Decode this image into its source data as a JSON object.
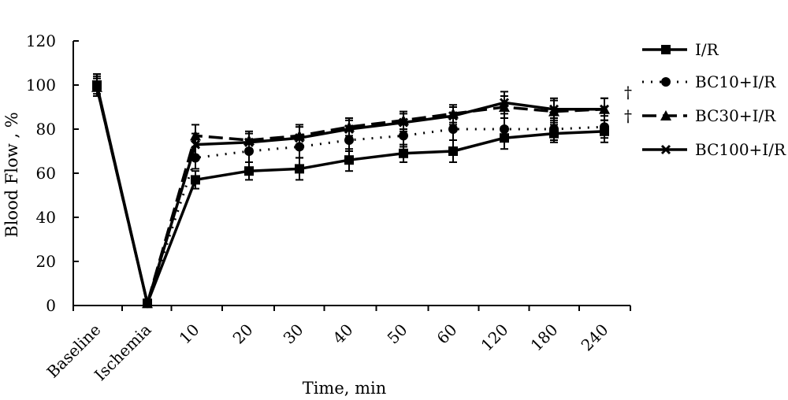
{
  "chart_data": {
    "type": "line",
    "title": "",
    "xlabel": "Time, min",
    "ylabel": "Blood Flow , %",
    "categories": [
      "Baseline",
      "Ischemia",
      "10",
      "20",
      "30",
      "40",
      "50",
      "60",
      "120",
      "180",
      "240"
    ],
    "ylim": [
      0,
      120
    ],
    "yticks": [
      0,
      20,
      40,
      60,
      80,
      100,
      120
    ],
    "grid": false,
    "legend_position": "right",
    "series": [
      {
        "name": "I/R",
        "marker": "square",
        "line": "solid",
        "values": [
          100,
          1,
          57,
          61,
          62,
          66,
          69,
          70,
          76,
          78,
          79
        ],
        "errors": [
          5,
          1,
          4,
          4,
          5,
          5,
          4,
          5,
          5,
          4,
          5
        ]
      },
      {
        "name": "BC10+I/R",
        "marker": "circle",
        "line": "dotted",
        "values": [
          100,
          1,
          67,
          70,
          72,
          75,
          77,
          80,
          80,
          80,
          81
        ],
        "errors": [
          4,
          1,
          5,
          5,
          5,
          5,
          5,
          5,
          5,
          5,
          5
        ]
      },
      {
        "name": "BC30+I/R",
        "marker": "triangle",
        "line": "dashed",
        "values": [
          99,
          1,
          77,
          75,
          77,
          81,
          84,
          87,
          90,
          88,
          89
        ],
        "errors": [
          4,
          1,
          5,
          4,
          5,
          4,
          4,
          4,
          5,
          5,
          5
        ]
      },
      {
        "name": "BC100+I/R",
        "marker": "x",
        "line": "solid",
        "values": [
          99,
          1,
          73,
          74,
          76,
          80,
          83,
          86,
          92,
          89,
          89
        ],
        "errors": [
          4,
          1,
          5,
          4,
          5,
          4,
          4,
          4,
          5,
          5,
          5
        ]
      }
    ],
    "annotations": [
      "†",
      "†"
    ]
  }
}
